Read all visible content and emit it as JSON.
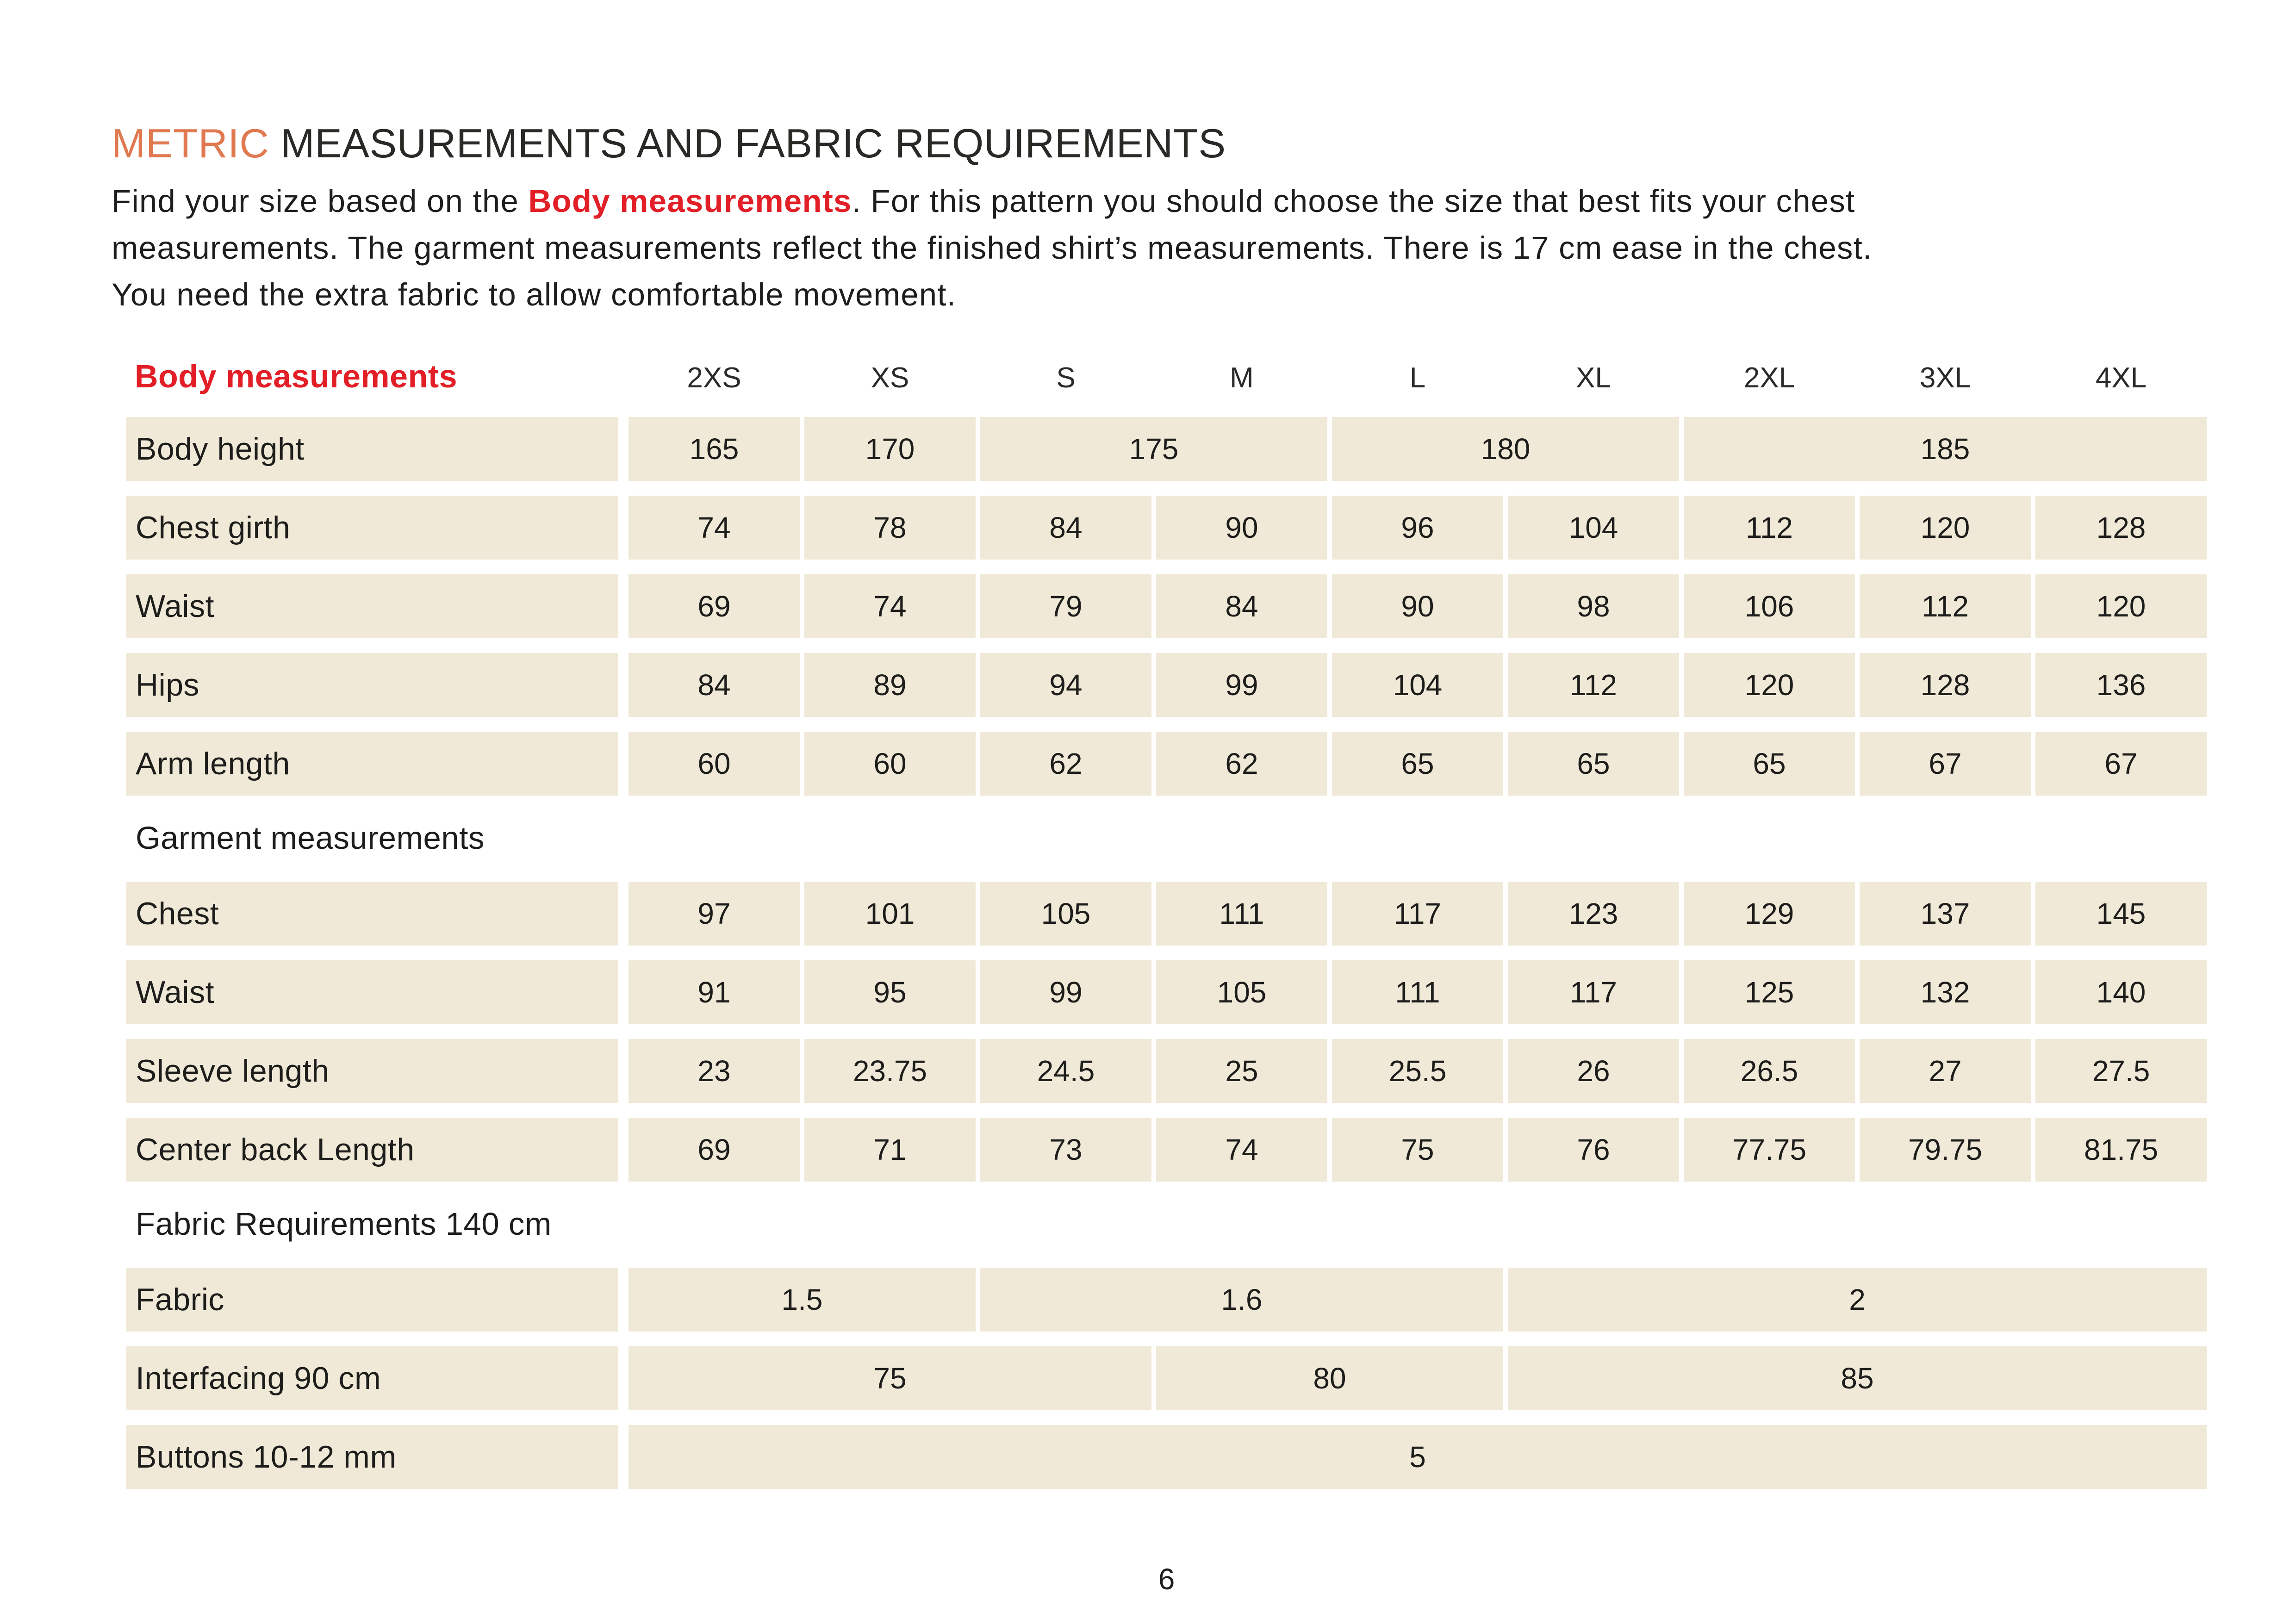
{
  "page": {
    "title": {
      "accent": "METRIC",
      "rest": " MEASUREMENTS AND FABRIC REQUIREMENTS"
    },
    "intro": {
      "line1_pre": "Find your size based on the ",
      "line1_bold": "Body measurements",
      "line1_post": ". For this pattern you should choose the size that best fits your chest",
      "line2": "measurements. The garment measurements reflect the finished shirt’s measurements. There is 17 cm ease in the chest.",
      "line3": "You need the extra fabric to allow comfortable movement."
    },
    "page_number": "6"
  },
  "colors": {
    "accent_orange": "#E07950",
    "accent_red": "#E21E26",
    "cell_beige": "#F0E9D7",
    "text_dark": "#1D1D1B"
  },
  "sizes": [
    "2XS",
    "XS",
    "S",
    "M",
    "L",
    "XL",
    "2XL",
    "3XL",
    "4XL"
  ],
  "sections": [
    {
      "header": "Body measurements",
      "style": "red",
      "rows": [
        {
          "label": "Body height",
          "cells": [
            {
              "v": "165"
            },
            {
              "v": "170"
            },
            {
              "v": "175",
              "span": 2
            },
            {
              "v": "180",
              "span": 2
            },
            {
              "v": "185",
              "span": 3
            }
          ]
        },
        {
          "label": "Chest girth",
          "cells": [
            {
              "v": "74"
            },
            {
              "v": "78"
            },
            {
              "v": "84"
            },
            {
              "v": "90"
            },
            {
              "v": "96"
            },
            {
              "v": "104"
            },
            {
              "v": "112"
            },
            {
              "v": "120"
            },
            {
              "v": "128"
            }
          ]
        },
        {
          "label": "Waist",
          "cells": [
            {
              "v": "69"
            },
            {
              "v": "74"
            },
            {
              "v": "79"
            },
            {
              "v": "84"
            },
            {
              "v": "90"
            },
            {
              "v": "98"
            },
            {
              "v": "106"
            },
            {
              "v": "112"
            },
            {
              "v": "120"
            }
          ]
        },
        {
          "label": "Hips",
          "cells": [
            {
              "v": "84"
            },
            {
              "v": "89"
            },
            {
              "v": "94"
            },
            {
              "v": "99"
            },
            {
              "v": "104"
            },
            {
              "v": "112"
            },
            {
              "v": "120"
            },
            {
              "v": "128"
            },
            {
              "v": "136"
            }
          ]
        },
        {
          "label": "Arm length",
          "cells": [
            {
              "v": "60"
            },
            {
              "v": "60"
            },
            {
              "v": "62"
            },
            {
              "v": "62"
            },
            {
              "v": "65"
            },
            {
              "v": "65"
            },
            {
              "v": "65"
            },
            {
              "v": "67"
            },
            {
              "v": "67"
            }
          ]
        }
      ]
    },
    {
      "header": "Garment measurements",
      "style": "plain",
      "rows": [
        {
          "label": "Chest",
          "cells": [
            {
              "v": "97"
            },
            {
              "v": "101"
            },
            {
              "v": "105"
            },
            {
              "v": "111"
            },
            {
              "v": "117"
            },
            {
              "v": "123"
            },
            {
              "v": "129"
            },
            {
              "v": "137"
            },
            {
              "v": "145"
            }
          ]
        },
        {
          "label": "Waist",
          "cells": [
            {
              "v": "91"
            },
            {
              "v": "95"
            },
            {
              "v": "99"
            },
            {
              "v": "105"
            },
            {
              "v": "111"
            },
            {
              "v": "117"
            },
            {
              "v": "125"
            },
            {
              "v": "132"
            },
            {
              "v": "140"
            }
          ]
        },
        {
          "label": "Sleeve length",
          "cells": [
            {
              "v": "23"
            },
            {
              "v": "23.75"
            },
            {
              "v": "24.5"
            },
            {
              "v": "25"
            },
            {
              "v": "25.5"
            },
            {
              "v": "26"
            },
            {
              "v": "26.5"
            },
            {
              "v": "27"
            },
            {
              "v": "27.5"
            }
          ]
        },
        {
          "label": "Center back Length",
          "cells": [
            {
              "v": "69"
            },
            {
              "v": "71"
            },
            {
              "v": "73"
            },
            {
              "v": "74"
            },
            {
              "v": "75"
            },
            {
              "v": "76"
            },
            {
              "v": "77.75"
            },
            {
              "v": "79.75"
            },
            {
              "v": "81.75"
            }
          ]
        }
      ]
    },
    {
      "header": "Fabric Requirements 140 cm",
      "style": "plain",
      "rows": [
        {
          "label": "Fabric",
          "cells": [
            {
              "v": "1.5",
              "span": 2
            },
            {
              "v": "1.6",
              "span": 3
            },
            {
              "v": "2",
              "span": 4
            }
          ]
        },
        {
          "label": "Interfacing 90 cm",
          "cells": [
            {
              "v": "75",
              "span": 3
            },
            {
              "v": "80",
              "span": 2
            },
            {
              "v": "85",
              "span": 4
            }
          ]
        },
        {
          "label": "Buttons 10-12 mm",
          "cells": [
            {
              "v": "5",
              "span": 9
            }
          ]
        }
      ]
    }
  ]
}
